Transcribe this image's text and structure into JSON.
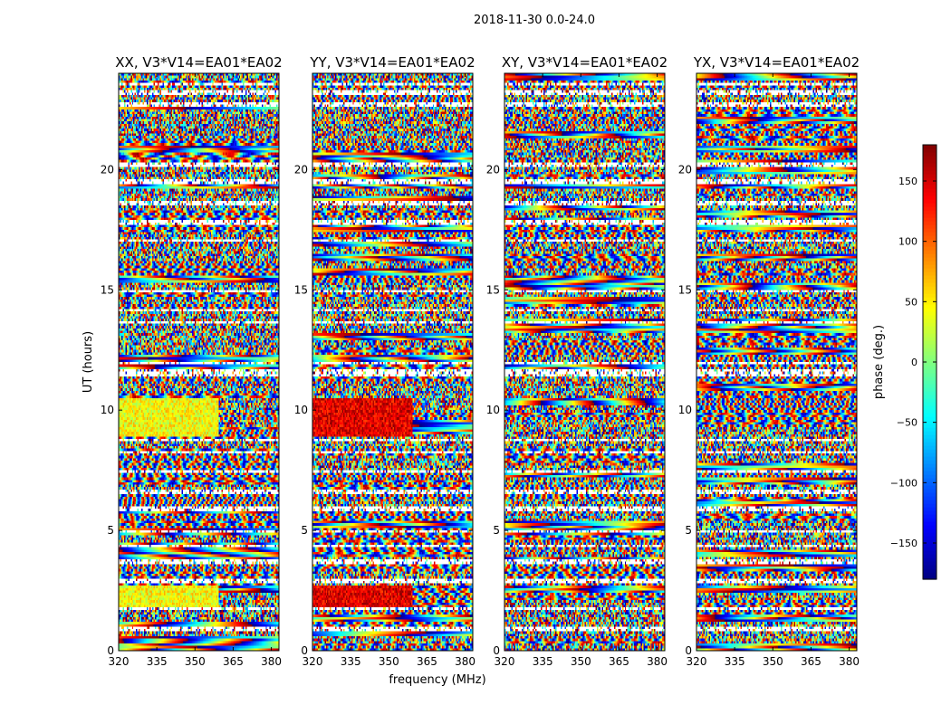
{
  "figure": {
    "suptitle": "2018-11-30 0.0-24.0"
  },
  "chart_data": {
    "type": "heatmap",
    "panels": [
      {
        "title": "XX, V3*V14=EA01*EA02",
        "pattern": "xx"
      },
      {
        "title": "YY, V3*V14=EA01*EA02",
        "pattern": "yy"
      },
      {
        "title": "XY, V3*V14=EA01*EA02",
        "pattern": "xy"
      },
      {
        "title": "YX, V3*V14=EA01*EA02",
        "pattern": "yx"
      }
    ],
    "xlabel": "frequency (MHz)",
    "ylabel": "UT (hours)",
    "xlim": [
      320,
      383
    ],
    "ylim": [
      0,
      24
    ],
    "x_ticks": [
      320,
      335,
      350,
      365,
      380
    ],
    "y_ticks": [
      0,
      5,
      10,
      15,
      20
    ],
    "colorbar": {
      "label": "phase (deg.)",
      "range": [
        -180,
        180
      ],
      "ticks": [
        150,
        100,
        50,
        0,
        -50,
        -100,
        -150
      ],
      "tick_labels": [
        "150",
        "100",
        "50",
        "0",
        "−50",
        "−100",
        "−150"
      ],
      "colormap": "jet"
    },
    "flagged_gaps_hours": [
      [
        0.85,
        0.95
      ],
      [
        1.7,
        1.8
      ],
      [
        2.85,
        2.95
      ],
      [
        3.6,
        3.75
      ],
      [
        4.3,
        4.4
      ],
      [
        4.9,
        5.0
      ],
      [
        5.85,
        6.0
      ],
      [
        6.55,
        6.7
      ],
      [
        7.4,
        7.5
      ],
      [
        8.2,
        8.3
      ],
      [
        8.75,
        8.85
      ],
      [
        11.4,
        11.7
      ],
      [
        11.9,
        12.0
      ],
      [
        13.6,
        13.7
      ],
      [
        14.05,
        14.15
      ],
      [
        14.9,
        15.0
      ],
      [
        17.0,
        17.1
      ],
      [
        17.75,
        17.85
      ],
      [
        18.5,
        18.7
      ],
      [
        19.4,
        19.6
      ],
      [
        20.1,
        20.25
      ],
      [
        22.6,
        22.8
      ],
      [
        23.1,
        23.25
      ],
      [
        23.55,
        23.6
      ]
    ]
  }
}
